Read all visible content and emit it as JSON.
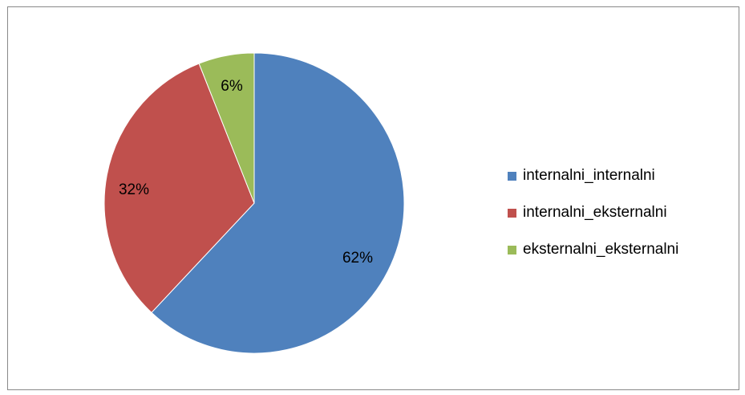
{
  "chart_data": {
    "type": "pie",
    "title": "",
    "slices": [
      {
        "label": "internalni_internalni",
        "value": 62,
        "display": "62%",
        "color": "#4F81BD"
      },
      {
        "label": "internalni_eksternalni",
        "value": 32,
        "display": "32%",
        "color": "#C0504D"
      },
      {
        "label": "eksternalni_eksternalni",
        "value": 6,
        "display": "6%",
        "color": "#9BBB59"
      }
    ],
    "start_angle_deg": 0,
    "direction": "clockwise",
    "legend": {
      "position": "right"
    },
    "data_labels": true
  }
}
